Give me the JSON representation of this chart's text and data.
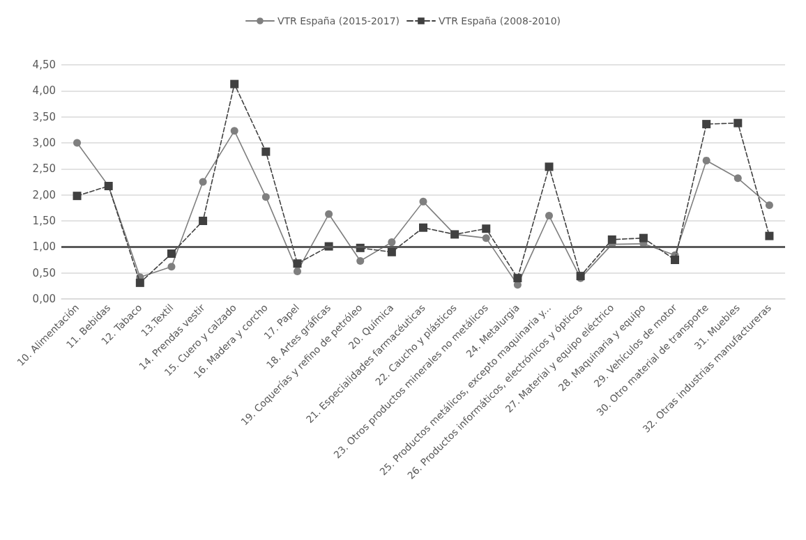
{
  "chart_data": {
    "type": "line",
    "categories": [
      "10. Alimentación",
      "11. Bebidas",
      "12. Tabaco",
      "13.Textil",
      "14. Prendas vestir",
      "15. Cuero y calzado",
      "16. Madera y corcho",
      "17. Papel",
      "18. Artes gráficas",
      "19. Coquerías y refino de petróleo",
      "20. Química",
      "21. Especialidades farmacéuticas",
      "22. Caucho y plásticos",
      "23. Otros productos minerales no metálicos",
      "24. Metalurgia",
      "25. Productos metálicos, excepto maquinaria y...",
      "26. Productos informáticos, electrónicos y ópticos",
      "27. Material y equipo eléctrico",
      "28. Maquinaria y equipo",
      "29. Vehículos de motor",
      "30. Otro material de transporte",
      "31. Muebles",
      "32. Otras industrias manufactureras"
    ],
    "series": [
      {
        "name": "VTR España (2015-2017)",
        "color": "#7f7f7f",
        "marker": "circle",
        "line_style": "solid",
        "values": [
          3.0,
          2.17,
          0.42,
          0.62,
          2.25,
          3.23,
          1.96,
          0.53,
          1.63,
          0.73,
          1.09,
          1.87,
          1.24,
          1.17,
          0.27,
          1.6,
          0.4,
          1.05,
          1.06,
          0.84,
          2.66,
          2.32,
          1.8
        ]
      },
      {
        "name": "VTR España (2008-2010)",
        "color": "#404040",
        "marker": "square",
        "line_style": "dashed",
        "values": [
          1.98,
          2.17,
          0.31,
          0.87,
          1.5,
          4.13,
          2.83,
          0.68,
          1.01,
          0.98,
          0.9,
          1.37,
          1.24,
          1.35,
          0.4,
          2.54,
          0.44,
          1.14,
          1.17,
          0.75,
          3.36,
          3.38,
          1.21
        ]
      }
    ],
    "ylim": [
      0,
      4.5
    ],
    "yticks": [
      {
        "value": 0,
        "label": "0,00"
      },
      {
        "value": 0.5,
        "label": "0,50"
      },
      {
        "value": 1,
        "label": "1,00"
      },
      {
        "value": 1.5,
        "label": "1,50"
      },
      {
        "value": 2,
        "label": "2,00"
      },
      {
        "value": 2.5,
        "label": "2,50"
      },
      {
        "value": 3,
        "label": "3,00"
      },
      {
        "value": 3.5,
        "label": "3,50"
      },
      {
        "value": 4,
        "label": "4,00"
      },
      {
        "value": 4.5,
        "label": "4,50"
      }
    ],
    "ref_lines": [
      {
        "axis": "y",
        "value": 1,
        "color": "#595959"
      }
    ],
    "grid": "y",
    "legend": "top"
  }
}
